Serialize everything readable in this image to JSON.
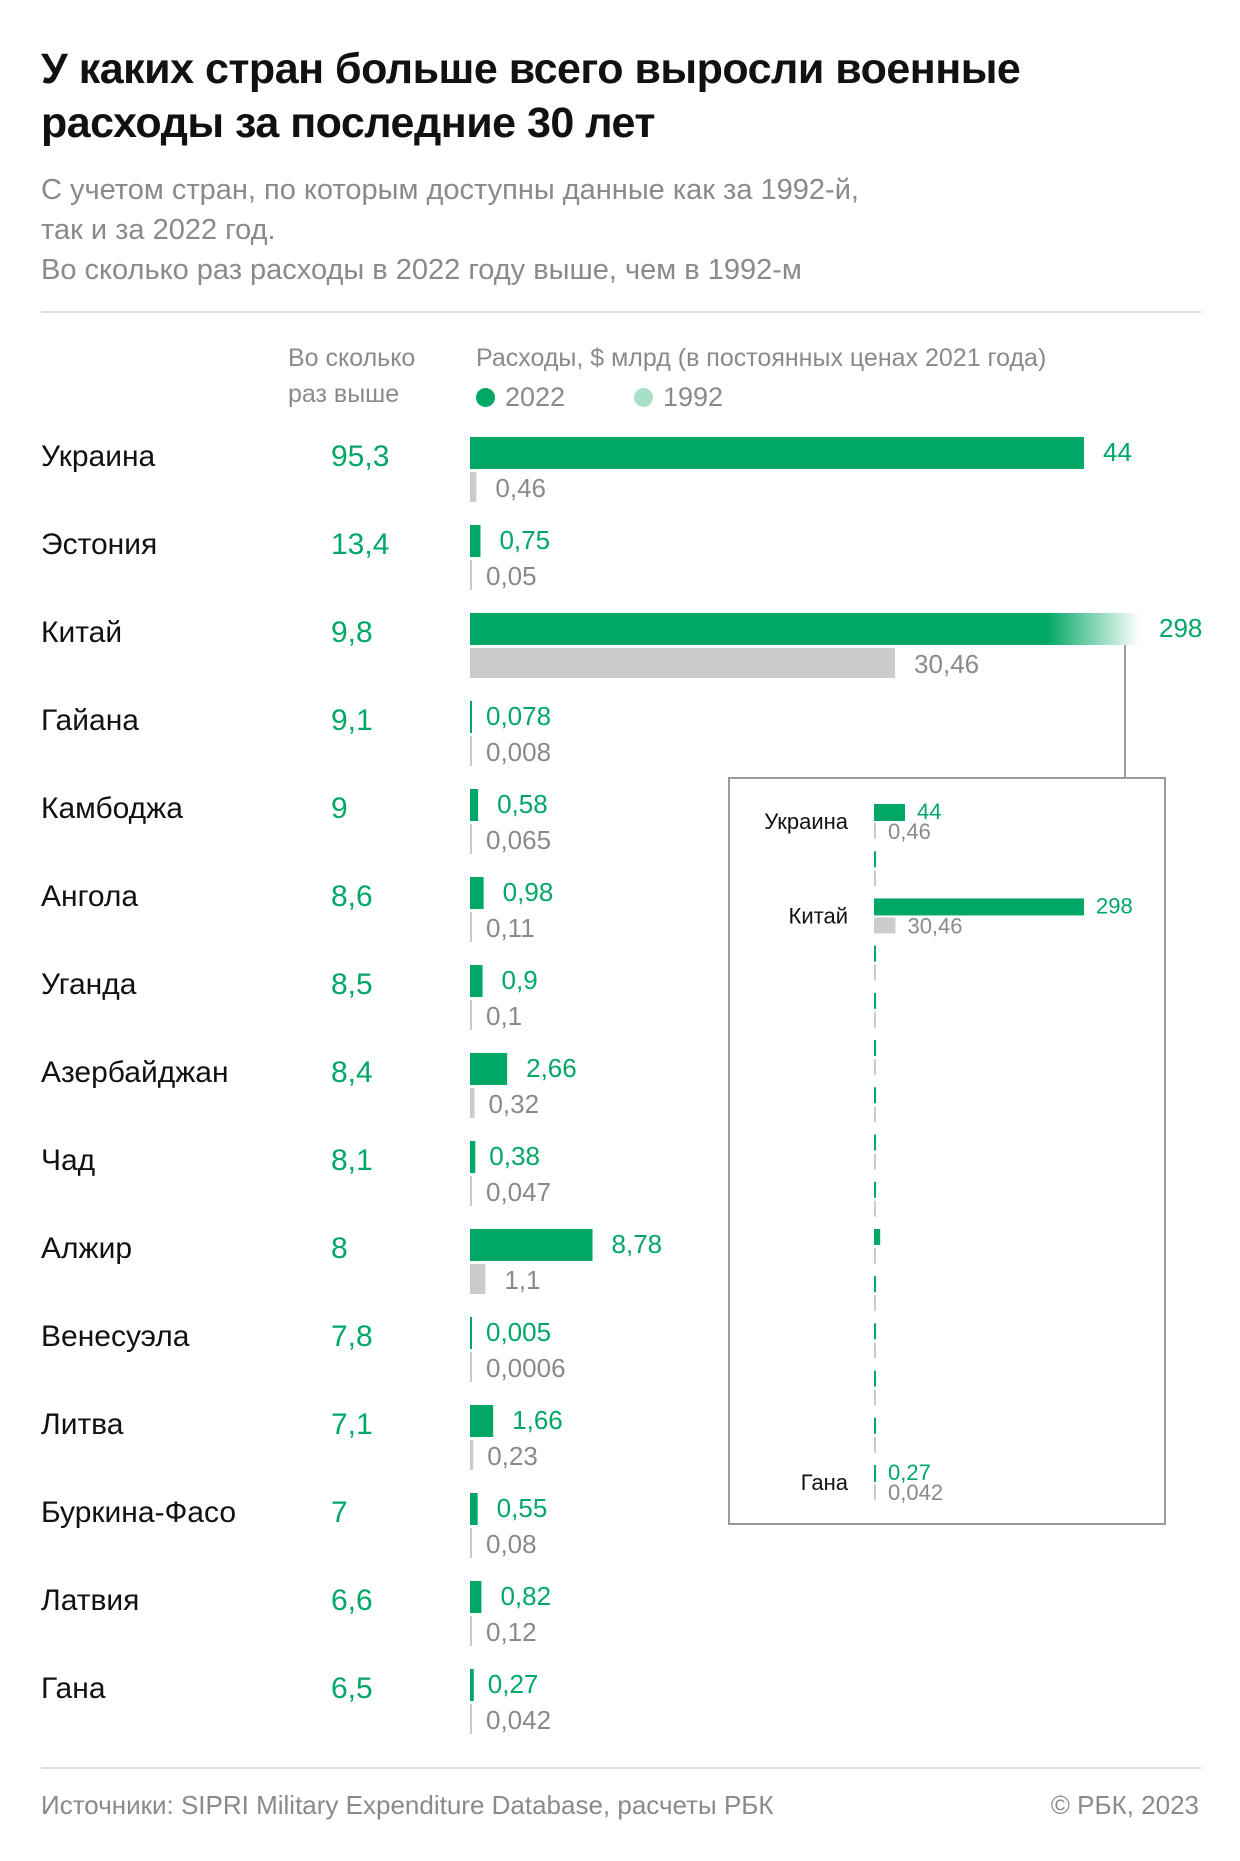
{
  "header": {
    "title": "У каких стран больше всего выросли военные расходы за последние 30 лет",
    "subtitle_line1": "С учетом стран, по которым доступны данные как за 1992-й,",
    "subtitle_line2": "так и за 2022 год.",
    "subtitle_line3": "Во сколько раз расходы в 2022 году выше, чем в 1992-м"
  },
  "columns": {
    "ratio_head_line1": "Во сколько",
    "ratio_head_line2": "раз выше",
    "spend_head": "Расходы, $ млрд (в постоянных ценах 2021 года)"
  },
  "legend": {
    "s2022": "2022",
    "s1992": "1992"
  },
  "colors": {
    "accent": "#00a765",
    "accent_light": "#a8e0c6",
    "gray_bar": "#cccccc",
    "gray_text": "#8a8a8a"
  },
  "chart_data": {
    "type": "bar",
    "orientation": "horizontal",
    "title": "У каких стран больше всего выросли военные расходы за последние 30 лет",
    "subtitle": "Расходы, $ млрд (в постоянных ценах 2021 года)",
    "categories": [
      "Украина",
      "Эстония",
      "Китай",
      "Гайана",
      "Камбоджа",
      "Ангола",
      "Уганда",
      "Азербайджан",
      "Чад",
      "Алжир",
      "Венесуэла",
      "Литва",
      "Буркина-Фасо",
      "Латвия",
      "Гана"
    ],
    "ratios": [
      "95,3",
      "13,4",
      "9,8",
      "9,1",
      "9",
      "8,6",
      "8,5",
      "8,4",
      "8,1",
      "8",
      "7,8",
      "7,1",
      "7",
      "6,6",
      "6,5"
    ],
    "series": [
      {
        "name": "2022",
        "values": [
          44,
          0.75,
          298,
          0.078,
          0.58,
          0.98,
          0.9,
          2.66,
          0.38,
          8.78,
          0.005,
          1.66,
          0.55,
          0.82,
          0.27
        ],
        "labels": [
          "44",
          "0,75",
          "298",
          "0,078",
          "0,58",
          "0,98",
          "0,9",
          "2,66",
          "0,38",
          "8,78",
          "0,005",
          "1,66",
          "0,55",
          "0,82",
          "0,27"
        ]
      },
      {
        "name": "1992",
        "values": [
          0.46,
          0.05,
          30.46,
          0.008,
          0.065,
          0.11,
          0.1,
          0.32,
          0.047,
          1.1,
          0.0006,
          0.23,
          0.08,
          0.12,
          0.042
        ],
        "labels": [
          "0,46",
          "0,05",
          "30,46",
          "0,008",
          "0,065",
          "0,11",
          "0,1",
          "0,32",
          "0,047",
          "1,1",
          "0,0006",
          "0,23",
          "0,08",
          "0,12",
          "0,042"
        ]
      }
    ],
    "truncated_category": "Китай",
    "inset": {
      "labeled_categories": [
        "Украина",
        "Китай",
        "Гана"
      ]
    }
  },
  "footer": {
    "source": "Источники: SIPRI Military Expenditure Database, расчеты РБК",
    "copyright": "© РБК, 2023"
  }
}
